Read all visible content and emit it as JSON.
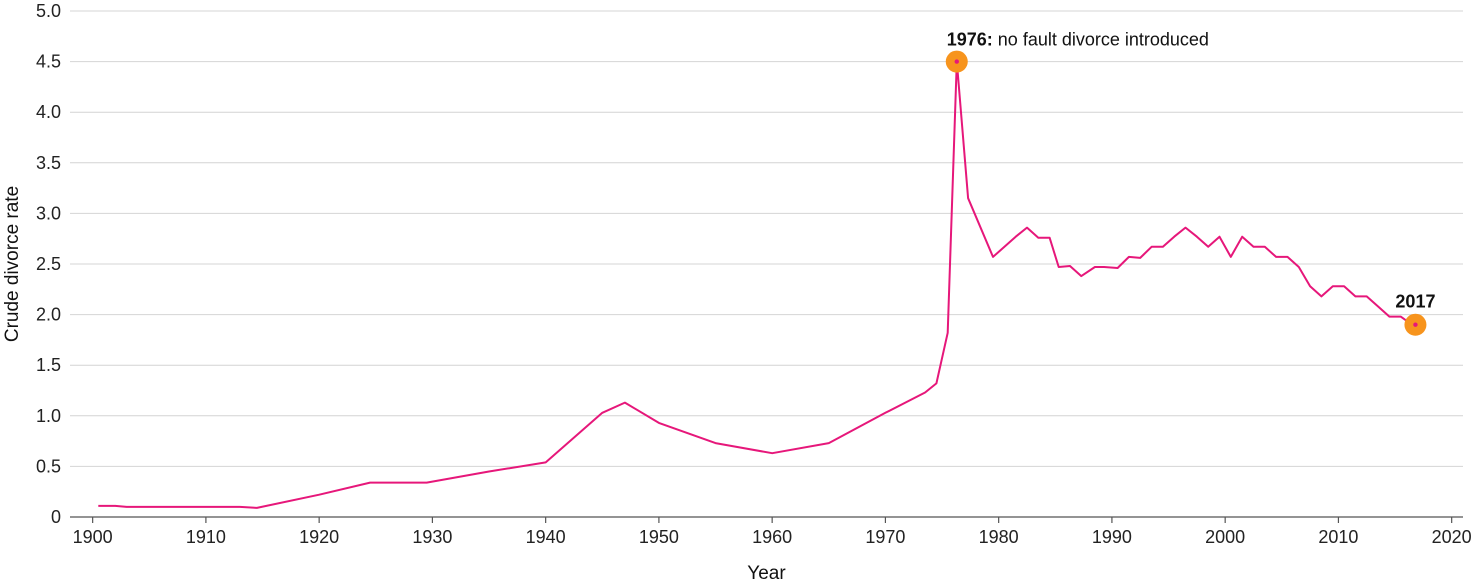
{
  "chart_data": {
    "type": "line",
    "xlabel": "Year",
    "ylabel": "Crude divorce rate",
    "xlim": [
      1898,
      2021
    ],
    "ylim": [
      0,
      5.0
    ],
    "x_ticks": [
      1900,
      1910,
      1920,
      1930,
      1940,
      1950,
      1960,
      1970,
      1980,
      1990,
      2000,
      2010,
      2020
    ],
    "y_ticks": [
      0,
      0.5,
      1.0,
      1.5,
      2.0,
      2.5,
      3.0,
      3.5,
      4.0,
      4.5,
      5.0
    ],
    "y_tick_labels": [
      "0",
      "0.5",
      "1.0",
      "1.5",
      "2.0",
      "2.5",
      "3.0",
      "3.5",
      "4.0",
      "4.5",
      "5.0"
    ],
    "grid": "horizontal",
    "line_color": "#e6177a",
    "marker_color": "#f7941d",
    "series": [
      {
        "x": [
          1900.5,
          1902,
          1903,
          1905,
          1907,
          1909,
          1911,
          1913,
          1914.5,
          1920,
          1924.5,
          1927,
          1929.5,
          1935,
          1940,
          1945,
          1947,
          1950,
          1955,
          1960,
          1965,
          1970,
          1973.5,
          1974.5,
          1975.5,
          1976.3,
          1977.3,
          1979.5,
          1981.5,
          1982.5,
          1983.5,
          1984.5,
          1985.3,
          1986.3,
          1987.3,
          1988.5,
          1989.3,
          1990.5,
          1991.5,
          1992.5,
          1993.5,
          1994.5,
          1995.5,
          1996.5,
          1997.5,
          1998.5,
          1999.5,
          2000.5,
          2001.5,
          2002.5,
          2003.5,
          2004.5,
          2005.5,
          2006.5,
          2007.5,
          2008.5,
          2009.5,
          2010.5,
          2011.5,
          2012.5,
          2013.5,
          2014.5,
          2015.5,
          2016.5
        ],
        "y": [
          0.11,
          0.11,
          0.1,
          0.1,
          0.1,
          0.1,
          0.1,
          0.1,
          0.09,
          0.22,
          0.34,
          0.34,
          0.34,
          0.45,
          0.54,
          1.03,
          1.13,
          0.93,
          0.73,
          0.63,
          0.73,
          1.03,
          1.23,
          1.32,
          1.82,
          4.5,
          3.15,
          2.57,
          2.77,
          2.86,
          2.76,
          2.76,
          2.47,
          2.48,
          2.38,
          2.47,
          2.47,
          2.46,
          2.57,
          2.56,
          2.67,
          2.67,
          2.77,
          2.86,
          2.77,
          2.67,
          2.77,
          2.57,
          2.77,
          2.67,
          2.67,
          2.57,
          2.57,
          2.47,
          2.28,
          2.18,
          2.28,
          2.28,
          2.18,
          2.18,
          2.08,
          1.98,
          1.98,
          1.9
        ]
      }
    ],
    "annotations": [
      {
        "x": 1976.3,
        "y": 4.5,
        "bold": "1976:",
        "text": " no fault divorce introduced"
      },
      {
        "x": 2016.8,
        "y": 1.9,
        "bold": "2017",
        "text": ""
      }
    ]
  }
}
